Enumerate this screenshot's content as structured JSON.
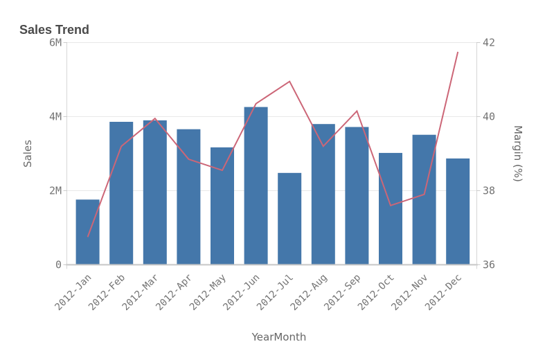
{
  "chart_data": {
    "type": "combo",
    "title": "Sales Trend",
    "x_axis": {
      "label": "YearMonth"
    },
    "categories": [
      "2012-Jan",
      "2012-Feb",
      "2012-Mar",
      "2012-Apr",
      "2012-May",
      "2012-Jun",
      "2012-Jul",
      "2012-Aug",
      "2012-Sep",
      "2012-Oct",
      "2012-Nov",
      "2012-Dec"
    ],
    "series": [
      {
        "name": "Sales",
        "type": "bar",
        "axis": "left",
        "unit": "millions",
        "values": [
          1.76,
          3.86,
          3.9,
          3.66,
          3.17,
          4.26,
          2.48,
          3.8,
          3.72,
          3.02,
          3.51,
          2.87
        ]
      },
      {
        "name": "Margin (%)",
        "type": "line",
        "axis": "right",
        "unit": "percent",
        "values": [
          36.75,
          39.2,
          39.95,
          38.85,
          38.55,
          40.35,
          40.95,
          39.2,
          40.15,
          37.6,
          37.9,
          41.75
        ]
      }
    ],
    "left_axis": {
      "label": "Sales",
      "range": [
        0,
        6
      ],
      "tick_values": [
        0,
        2,
        4,
        6
      ],
      "tick_labels": [
        "0",
        "2M",
        "4M",
        "6M"
      ]
    },
    "right_axis": {
      "label": "Margin (%)",
      "range": [
        36,
        42
      ],
      "tick_values": [
        36,
        38,
        40,
        42
      ],
      "tick_labels": [
        "36",
        "38",
        "40",
        "42"
      ]
    },
    "grid": true,
    "legend": false,
    "colors": {
      "bar": "#4477aa",
      "line": "#cc6677",
      "gridline": "#e8e8e8",
      "axis_line": "#c6c6c6",
      "tick_text": "#737373"
    }
  }
}
